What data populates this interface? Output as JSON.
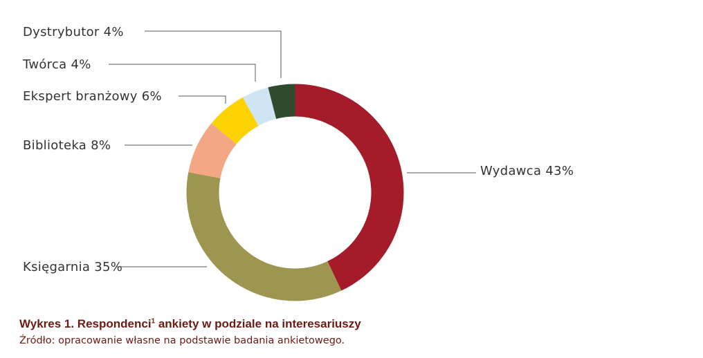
{
  "chart_data": {
    "type": "pie",
    "variant": "donut",
    "categories": [
      "Wydawca",
      "Księgarnia",
      "Biblioteka",
      "Ekspert branżowy",
      "Twórca",
      "Dystrybutor"
    ],
    "values": [
      43,
      35,
      8,
      6,
      4,
      4
    ],
    "labels": [
      "Wydawca 43%",
      "Księgarnia 35%",
      "Biblioteka 8%",
      "Ekspert branżowy 6%",
      "Twórca 4%",
      "Dystrybutor 4%"
    ],
    "colors": [
      "#a41c2a",
      "#9e9550",
      "#f4a784",
      "#fcd200",
      "#cfe5f3",
      "#2f4a2e"
    ],
    "start": "top, clockwise"
  },
  "caption": {
    "title": "Wykres 1. Respondenci",
    "footnote": "1",
    "title_rest": " ankiety w podziale na interesariuszy",
    "source": "Źródło: opracowanie własne na podstawie badania ankietowego."
  }
}
